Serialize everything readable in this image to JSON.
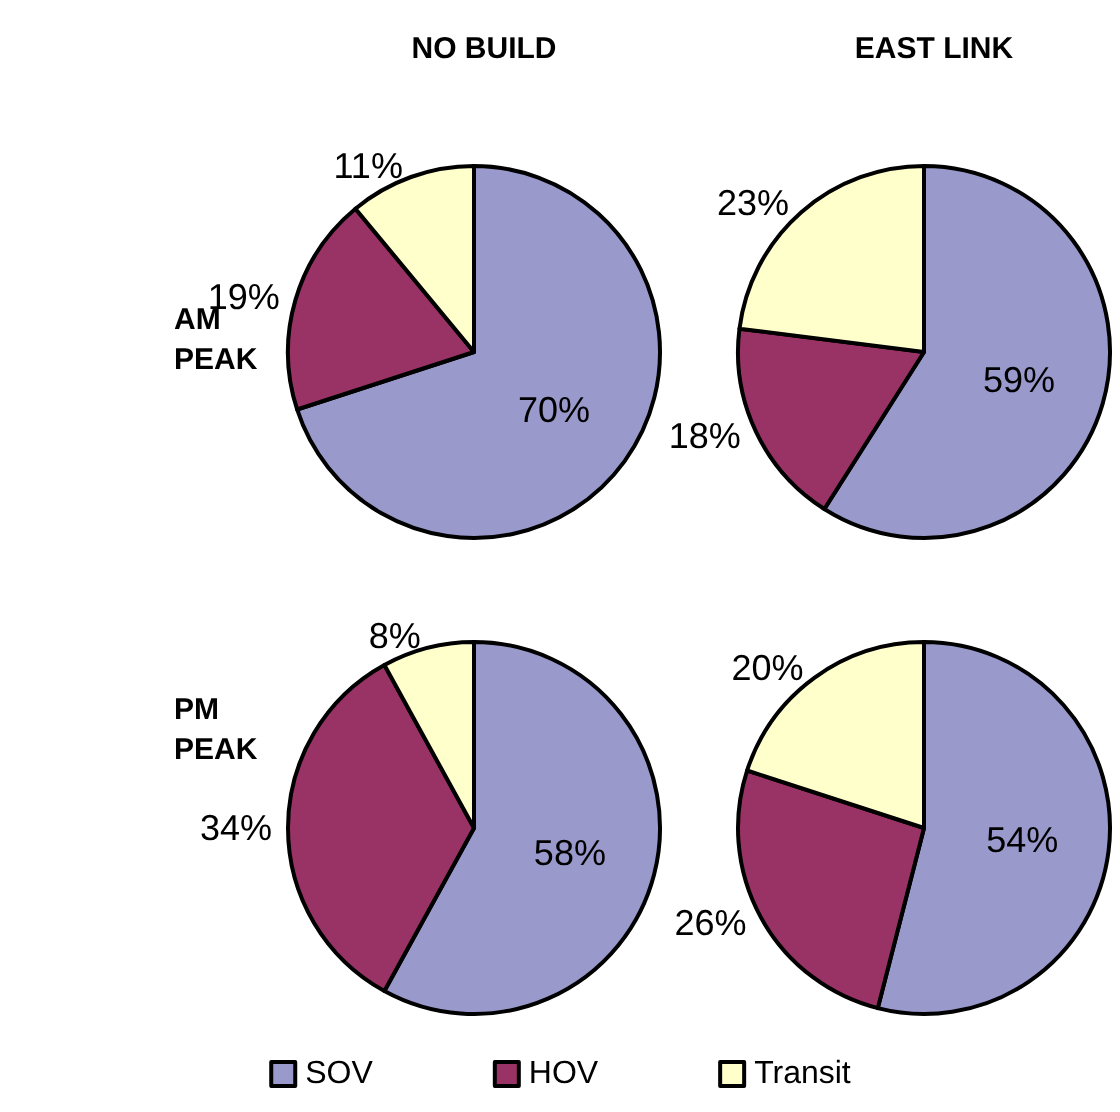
{
  "chart_data": [
    {
      "type": "pie",
      "title": "NO BUILD",
      "ylabel": "AM PEAK",
      "values": [
        70,
        19,
        11
      ],
      "colors": [
        "#9999cc",
        "#993366",
        "#ffffcc"
      ],
      "value_labels": [
        "70%",
        "19%",
        "11%"
      ]
    },
    {
      "type": "pie",
      "title": "EAST LINK",
      "values": [
        59,
        18,
        23
      ],
      "colors": [
        "#9999cc",
        "#993366",
        "#ffffcc"
      ],
      "value_labels": [
        "59%",
        "18%",
        "23%"
      ]
    },
    {
      "type": "pie",
      "ylabel": "PM PEAK",
      "values": [
        58,
        34,
        8
      ],
      "colors": [
        "#9999cc",
        "#993366",
        "#ffffcc"
      ],
      "value_labels": [
        "58%",
        "34%",
        "8%"
      ]
    },
    {
      "type": "pie",
      "categories": [
        "SOV",
        "HOV",
        "Transit"
      ],
      "values": [
        54,
        26,
        20
      ],
      "colors": [
        "#9999cc",
        "#993366",
        "#ffffcc"
      ],
      "value_labels": [
        "54%",
        "26%",
        "20%"
      ],
      "legend": "bottom"
    }
  ]
}
